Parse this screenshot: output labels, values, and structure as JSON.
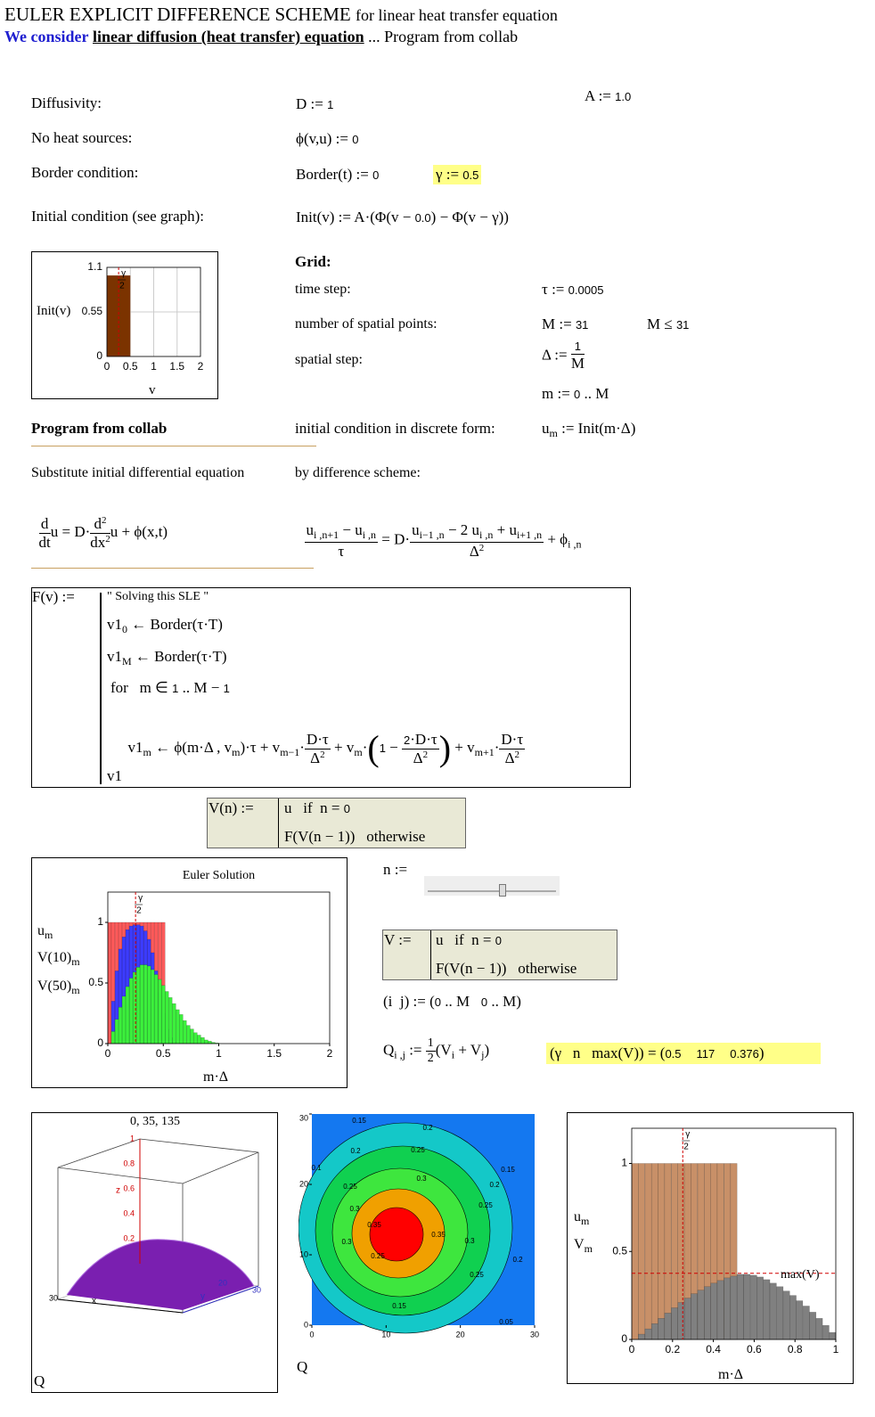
{
  "header": {
    "title": "EULER EXPLICIT DIFFERENCE SCHEME",
    "title_rest": "for linear heat transfer equation",
    "intro": "We consider",
    "link": "linear diffusion (heat transfer) equation",
    "intro_rest": " ... Program from collab"
  },
  "labels": {
    "diffusivity": "Diffusivity:",
    "sources": "No heat sources:",
    "border": "Border condition:",
    "initial": "Initial condition (see graph):",
    "grid": "Grid:",
    "time_step": "time step:",
    "points": "number of spatial points:",
    "spatial_step": "spatial step:",
    "program": "Program from collab",
    "discrete": "initial condition in discrete form:",
    "substitute": "Substitute initial differential equation",
    "scheme": "by difference scheme:"
  },
  "defs": {
    "D": [
      "D := ",
      "1"
    ],
    "A": [
      "A := ",
      "1.0"
    ],
    "phi": [
      "ϕ(v,u) := ",
      "0"
    ],
    "border": [
      "Border(t) := ",
      "0"
    ],
    "gamma": [
      "γ := ",
      "0.5"
    ],
    "init": [
      "Init(v) := A·(Φ(v − ",
      "0.0",
      ") − Φ(v − γ))"
    ],
    "tau": [
      "τ := ",
      "0.0005"
    ],
    "M": [
      "M := ",
      "31"
    ],
    "M_limit": [
      "M ≤ ",
      "31"
    ],
    "delta": [
      "Δ := ",
      "1",
      "M"
    ],
    "m": [
      "m := ",
      "0",
      " .. M"
    ],
    "u": [
      "u",
      "m",
      " := Init(m·Δ)"
    ]
  },
  "equations": {
    "ode": [
      "d",
      "dt",
      "u = D·",
      "d",
      "2",
      "dx",
      "2",
      "u + ϕ(x,t)"
    ],
    "scheme": [
      "u",
      "i ,n+1",
      " − u",
      "i ,n",
      "τ",
      " = D·",
      "u",
      "i−1 ,n",
      " − 2 u",
      "i ,n",
      " + u",
      "i+1 ,n",
      "Δ",
      "2",
      " + ϕ",
      "i ,n"
    ]
  },
  "program": {
    "name": "F(v) :=",
    "comment": "\" Solving this SLE \"",
    "line1": [
      "v1",
      "0",
      " ← Border(τ·T)"
    ],
    "line2": [
      "v1",
      "M",
      " ← Border(τ·T)"
    ],
    "loop": [
      "for",
      "m ∈ ",
      "1",
      " .. M − ",
      "1"
    ],
    "update": [
      "v1",
      "m",
      " ← ϕ(m·Δ , v",
      "m",
      ")·τ + v",
      "m−1",
      "·",
      "D·τ",
      "Δ",
      "2",
      " + v",
      "m",
      "·",
      "1",
      " − ",
      "2",
      "·D·τ",
      "Δ",
      "2",
      " + v",
      "m+1",
      "·",
      "D·τ",
      "Δ",
      "2"
    ],
    "result": "v1"
  },
  "V_def": {
    "name": "V(n) :=",
    "case1": [
      "u",
      "if",
      "n = ",
      "0"
    ],
    "case2": [
      "F(V(n − 1))",
      "otherwise"
    ]
  },
  "V_slider": {
    "name": "V :=",
    "case1": [
      "u",
      "if",
      "n = ",
      "0"
    ],
    "case2": [
      "F(V(n − 1))",
      "otherwise"
    ]
  },
  "n_label": "n :=",
  "ij": [
    "(i  j) := (",
    "0",
    " .. M   ",
    "0",
    " .. M)"
  ],
  "Q": [
    "Q",
    "i ,j",
    " := ",
    "1",
    "2",
    "(V",
    "i",
    " + V",
    "j",
    ")"
  ],
  "result": {
    "lhs": "(γ   n   max(V)) = (",
    "values": [
      0.5,
      117,
      0.376
    ],
    "close": ")"
  },
  "init_chart": {
    "type": "bar",
    "y_label": "Init(v)",
    "x_label": "v",
    "xlim": [
      0,
      2
    ],
    "ylim": [
      0,
      1.1
    ],
    "xticks": [
      0,
      0.5,
      1,
      1.5,
      2
    ],
    "yticks": [
      0,
      0.55,
      1.1
    ],
    "grid": true,
    "bins": [
      0,
      0.5
    ],
    "values": [
      1.0
    ],
    "color": "#7b3300",
    "marker": {
      "x": 0.25,
      "label": [
        "γ",
        "2"
      ]
    }
  },
  "euler_chart": {
    "type": "bar",
    "title": "Euler Solution",
    "x_label": "m·Δ",
    "xlim": [
      0,
      2
    ],
    "ylim": [
      0,
      1.25
    ],
    "xticks": [
      0,
      0.5,
      1,
      1.5,
      2
    ],
    "yticks": [
      0,
      0.5,
      1
    ],
    "grid": false,
    "x": [
      0,
      0.032,
      0.065,
      0.097,
      0.129,
      0.161,
      0.194,
      0.226,
      0.258,
      0.29,
      0.323,
      0.355,
      0.387,
      0.419,
      0.452,
      0.484,
      0.516,
      0.548,
      0.581,
      0.613,
      0.645,
      0.677,
      0.71,
      0.742,
      0.774,
      0.806,
      0.839,
      0.871,
      0.903,
      0.935,
      0.968,
      1
    ],
    "series": [
      {
        "name": [
          "u",
          "m"
        ],
        "color": "#ff5a5a",
        "values": [
          1,
          1,
          1,
          1,
          1,
          1,
          1,
          1,
          1,
          1,
          1,
          1,
          1,
          1,
          1,
          1,
          0,
          0,
          0,
          0,
          0,
          0,
          0,
          0,
          0,
          0,
          0,
          0,
          0,
          0,
          0,
          0
        ]
      },
      {
        "name": [
          "V(10)",
          "m"
        ],
        "color": "#3c3cff",
        "values": [
          0,
          0.35,
          0.6,
          0.78,
          0.88,
          0.94,
          0.97,
          0.98,
          0.98,
          0.97,
          0.93,
          0.86,
          0.75,
          0.6,
          0.42,
          0.25,
          0.12,
          0.05,
          0.02,
          0,
          0,
          0,
          0,
          0,
          0,
          0,
          0,
          0,
          0,
          0,
          0,
          0
        ]
      },
      {
        "name": [
          "V(50)",
          "m"
        ],
        "color": "#3cf03c",
        "values": [
          0,
          0.1,
          0.2,
          0.3,
          0.39,
          0.47,
          0.54,
          0.59,
          0.63,
          0.65,
          0.65,
          0.64,
          0.61,
          0.57,
          0.53,
          0.48,
          0.43,
          0.38,
          0.33,
          0.28,
          0.24,
          0.19,
          0.15,
          0.12,
          0.09,
          0.07,
          0.05,
          0.03,
          0.02,
          0.01,
          0.005,
          0
        ]
      }
    ],
    "marker": {
      "x": 0.25,
      "label": [
        "γ",
        "2"
      ]
    }
  },
  "surface_chart": {
    "title": "0, 35, 135",
    "zticks": [
      0.2,
      0.4,
      0.6,
      0.8,
      1
    ],
    "axis_labels": {
      "x": "x",
      "y": "y",
      "z": "z"
    },
    "xticks": [
      30
    ],
    "yticks": [
      20,
      30
    ],
    "caption": "Q"
  },
  "contour_chart": {
    "xlim": [
      0,
      30
    ],
    "ylim": [
      0,
      30
    ],
    "xticks": [
      0,
      10,
      20,
      30
    ],
    "yticks": [
      0,
      10,
      20,
      30
    ],
    "levels": [
      0.35,
      0.35,
      0.3,
      0.3,
      0.3,
      0.3,
      0.25,
      0.25,
      0.25,
      0.25,
      0.25,
      0.2,
      0.2,
      0.2,
      0.2,
      0.15,
      0.15,
      0.15,
      0.1,
      0.05
    ],
    "caption": "Q"
  },
  "final_chart": {
    "type": "bar",
    "x_label": "m·Δ",
    "xlim": [
      0,
      1
    ],
    "ylim": [
      0,
      1.2
    ],
    "xticks": [
      0,
      0.2,
      0.4,
      0.6,
      0.8,
      1
    ],
    "yticks": [
      0,
      0.5,
      1
    ],
    "grid": false,
    "max_label": "max(V)",
    "x": [
      0,
      0.032,
      0.065,
      0.097,
      0.129,
      0.161,
      0.194,
      0.226,
      0.258,
      0.29,
      0.323,
      0.355,
      0.387,
      0.419,
      0.452,
      0.484,
      0.516,
      0.548,
      0.581,
      0.613,
      0.645,
      0.677,
      0.71,
      0.742,
      0.774,
      0.806,
      0.839,
      0.871,
      0.903,
      0.935,
      0.968,
      1
    ],
    "series": [
      {
        "name": [
          "u",
          "m"
        ],
        "color": "#c89068",
        "values": [
          1,
          1,
          1,
          1,
          1,
          1,
          1,
          1,
          1,
          1,
          1,
          1,
          1,
          1,
          1,
          1,
          0,
          0,
          0,
          0,
          0,
          0,
          0,
          0,
          0,
          0,
          0,
          0,
          0,
          0,
          0,
          0
        ]
      },
      {
        "name": [
          "V",
          "m"
        ],
        "color": "#808080",
        "values": [
          0,
          0.03,
          0.06,
          0.09,
          0.12,
          0.15,
          0.18,
          0.21,
          0.235,
          0.26,
          0.28,
          0.3,
          0.32,
          0.335,
          0.35,
          0.36,
          0.37,
          0.37,
          0.365,
          0.355,
          0.34,
          0.32,
          0.3,
          0.275,
          0.25,
          0.22,
          0.19,
          0.155,
          0.12,
          0.08,
          0.04,
          0
        ]
      }
    ],
    "marker": {
      "x": 0.25,
      "label": [
        "γ",
        "2"
      ]
    }
  }
}
